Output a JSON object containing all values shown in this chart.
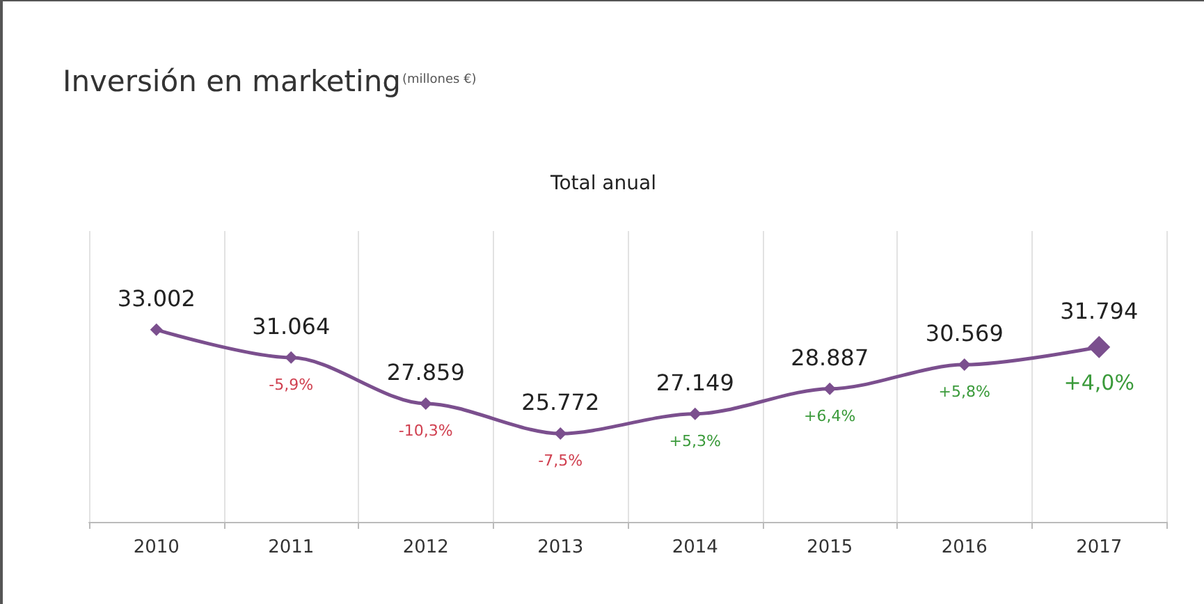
{
  "chart_data": {
    "type": "line",
    "title": "Inversión en marketing",
    "subtitle": "(millones €)",
    "categories": [
      "2010",
      "2011",
      "2012",
      "2013",
      "2014",
      "2015",
      "2016",
      "2017"
    ],
    "series": [
      {
        "color": "#7b4f8e",
        "values": [
          33002,
          31064,
          27859,
          25772,
          27149,
          28887,
          30569,
          31794
        ],
        "value_labels": [
          "33.002",
          "31.064",
          "27.859",
          "25.772",
          "27.149",
          "28.887",
          "30.569",
          "31.794"
        ]
      }
    ],
    "annotations": [
      "Total anual",
      {
        "text": "-5,9%",
        "x": "2011",
        "y": 31064
      },
      {
        "text": "-10,3%",
        "x": "2012",
        "y": 27859
      },
      {
        "text": "-7,5%",
        "x": "2013",
        "y": 25772
      },
      {
        "text": "+5,3%",
        "x": "2014",
        "y": 27149
      },
      {
        "text": "+6,4%",
        "x": "2015",
        "y": 28887
      },
      {
        "text": "+5,8%",
        "x": "2016",
        "y": 30569
      },
      {
        "text": "+4,0%",
        "x": "2017",
        "y": 31794
      }
    ],
    "marker": "diamond",
    "line_style": "solid",
    "grid": "x"
  }
}
